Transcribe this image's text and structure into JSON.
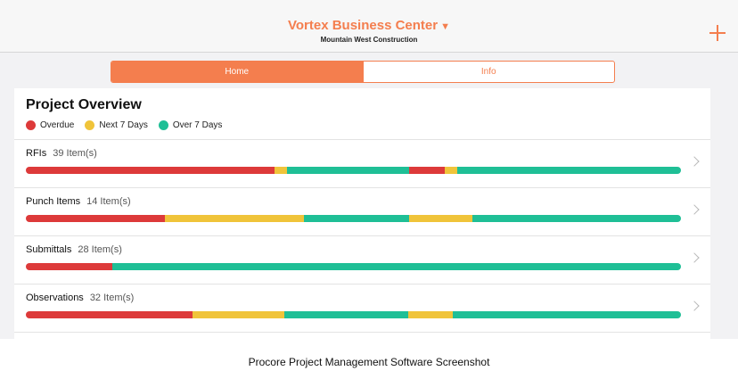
{
  "header": {
    "project_name": "Vortex Business Center",
    "company_name": "Mountain West Construction"
  },
  "tabs": [
    {
      "label": "Home",
      "active": true
    },
    {
      "label": "Info",
      "active": false
    }
  ],
  "overview": {
    "title": "Project Overview",
    "legend": [
      {
        "label": "Overdue",
        "color": "#dd3a3a"
      },
      {
        "label": "Next 7 Days",
        "color": "#f0c43a"
      },
      {
        "label": "Over 7 Days",
        "color": "#1fbf96"
      }
    ],
    "rows": [
      {
        "name": "RFIs",
        "count": "39 Item(s)",
        "segments": [
          {
            "status": "overdue",
            "share": 0.38
          },
          {
            "status": "next7",
            "share": 0.018
          },
          {
            "status": "over7",
            "share": 0.187
          },
          {
            "status": "overdue",
            "share": 0.055
          },
          {
            "status": "next7",
            "share": 0.018
          },
          {
            "status": "over7",
            "share": 0.342
          }
        ]
      },
      {
        "name": "Punch Items",
        "count": "14 Item(s)",
        "segments": [
          {
            "status": "overdue",
            "share": 0.212
          },
          {
            "status": "next7",
            "share": 0.212
          },
          {
            "status": "over7",
            "share": 0.161
          },
          {
            "status": "next7",
            "share": 0.097
          },
          {
            "status": "over7",
            "share": 0.318
          }
        ]
      },
      {
        "name": "Submittals",
        "count": "28 Item(s)",
        "segments": [
          {
            "status": "overdue",
            "share": 0.132
          },
          {
            "status": "over7",
            "share": 0.868
          }
        ]
      },
      {
        "name": "Observations",
        "count": "32 Item(s)",
        "segments": [
          {
            "status": "overdue",
            "share": 0.255
          },
          {
            "status": "next7",
            "share": 0.139
          },
          {
            "status": "over7",
            "share": 0.19
          },
          {
            "status": "next7",
            "share": 0.068
          },
          {
            "status": "over7",
            "share": 0.348
          }
        ]
      }
    ]
  },
  "caption": "Procore Project Management Software Screenshot"
}
